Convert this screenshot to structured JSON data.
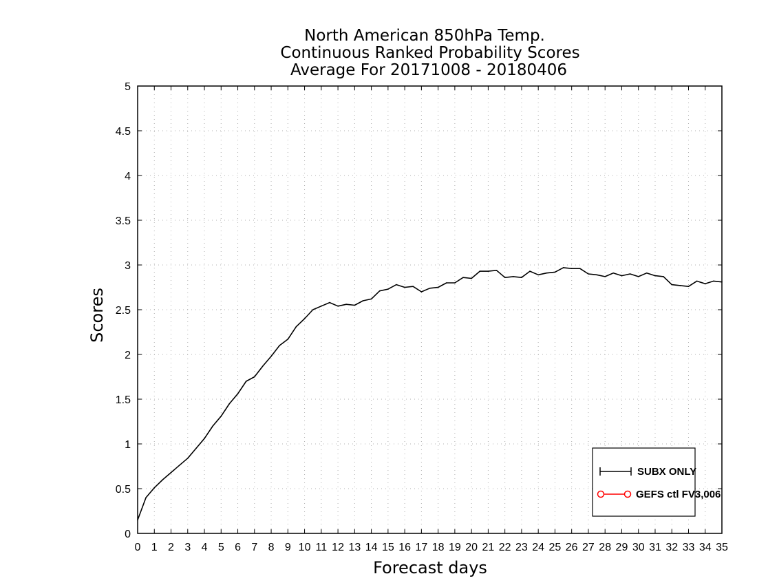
{
  "chart_data": {
    "type": "line",
    "title": [
      "North American 850hPa Temp.",
      "Continuous Ranked Probability Scores",
      "Average For 20171008 - 20180406"
    ],
    "xlabel": "Forecast days",
    "ylabel": "Scores",
    "xlim": [
      0,
      35
    ],
    "ylim": [
      0,
      5
    ],
    "x_ticks": [
      "0",
      "1",
      "2",
      "3",
      "4",
      "5",
      "6",
      "7",
      "8",
      "9",
      "10",
      "11",
      "12",
      "13",
      "14",
      "15",
      "16",
      "17",
      "18",
      "19",
      "20",
      "21",
      "22",
      "23",
      "24",
      "25",
      "26",
      "27",
      "28",
      "29",
      "30",
      "31",
      "32",
      "33",
      "34",
      "35"
    ],
    "y_ticks": [
      "0",
      "0.5",
      "1",
      "1.5",
      "2",
      "2.5",
      "3",
      "3.5",
      "4",
      "4.5",
      "5"
    ],
    "grid": true,
    "grid_style": "dotted",
    "legend_position": "bottom-right",
    "series": [
      {
        "name": "SUBX ONLY",
        "color": "#000000",
        "marker": "plus",
        "x": [
          0,
          0.5,
          1,
          1.5,
          2,
          2.5,
          3,
          3.5,
          4,
          4.5,
          5,
          5.5,
          6,
          6.5,
          7,
          7.5,
          8,
          8.5,
          9,
          9.5,
          10,
          10.5,
          11,
          11.5,
          12,
          12.5,
          13,
          13.5,
          14,
          14.5,
          15,
          15.5,
          16,
          16.5,
          17,
          17.5,
          18,
          18.5,
          19,
          19.5,
          20,
          20.5,
          21,
          21.5,
          22,
          22.5,
          23,
          23.5,
          24,
          24.5,
          25,
          25.5,
          26,
          26.5,
          27,
          27.5,
          28,
          28.5,
          29,
          29.5,
          30,
          30.5,
          31,
          31.5,
          32,
          32.5,
          33,
          33.5,
          34,
          34.5,
          35
        ],
        "values": [
          0.15,
          0.4,
          0.51,
          0.6,
          0.68,
          0.76,
          0.84,
          0.95,
          1.06,
          1.2,
          1.31,
          1.45,
          1.56,
          1.7,
          1.75,
          1.87,
          1.98,
          2.1,
          2.17,
          2.31,
          2.4,
          2.5,
          2.54,
          2.58,
          2.54,
          2.56,
          2.55,
          2.6,
          2.62,
          2.71,
          2.73,
          2.78,
          2.75,
          2.76,
          2.7,
          2.74,
          2.75,
          2.8,
          2.8,
          2.86,
          2.85,
          2.93,
          2.93,
          2.94,
          2.86,
          2.87,
          2.86,
          2.93,
          2.89,
          2.91,
          2.92,
          2.97,
          2.96,
          2.96,
          2.9,
          2.89,
          2.87,
          2.91,
          2.88,
          2.9,
          2.87,
          2.91,
          2.88,
          2.87,
          2.78,
          2.77,
          2.76,
          2.82,
          2.79,
          2.82,
          2.81
        ]
      },
      {
        "name": "GEFS ctl FV3,006",
        "color": "#ff0000",
        "marker": "circle",
        "x": [],
        "values": []
      }
    ]
  }
}
